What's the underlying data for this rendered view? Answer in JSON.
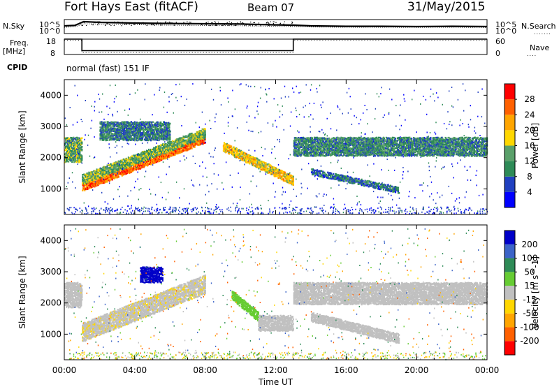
{
  "header": {
    "station": "Fort Hays East (fitACF)",
    "beam": "Beam 07",
    "date": "31/May/2015"
  },
  "strip_labels": {
    "nsky": "N.Sky",
    "nsearch": "N.Search",
    "freq": "Freq.",
    "freq_unit": "[MHz]",
    "nave": "Nave",
    "cpid": "CPID",
    "cpid_value": "normal (fast) 151 IF",
    "noise_ticks_left": [
      "10^5",
      "10^0"
    ],
    "noise_ticks_right": [
      "10^5",
      "10^0"
    ],
    "freq_ticks_left": [
      "18",
      "8"
    ],
    "freq_ticks_right": [
      "60",
      "0"
    ]
  },
  "colors": {
    "power_scale": [
      "#0000ff",
      "#2040c0",
      "#2e8b57",
      "#5aa06a",
      "#ffd700",
      "#ffa500",
      "#ff6000",
      "#ff0000"
    ],
    "velocity_scale": [
      "#0000c8",
      "#3c64c8",
      "#2e8b57",
      "#66cc33",
      "#c0c0c0",
      "#ffd700",
      "#ffa500",
      "#ff6000",
      "#ff0000"
    ],
    "ground_scatter": "#c0c0c0"
  },
  "chart_data": [
    {
      "type": "line",
      "name": "noise",
      "x": [
        0,
        0.6,
        1.1,
        2,
        4,
        6,
        8,
        10,
        12,
        13,
        14,
        16,
        18,
        20,
        22,
        24
      ],
      "series": [
        {
          "name": "N.Sky",
          "values": [
            0.55,
            0.58,
            0.85,
            0.8,
            0.75,
            0.72,
            0.7,
            0.68,
            0.62,
            0.6,
            0.55,
            0.52,
            0.52,
            0.5,
            0.52,
            0.5
          ]
        },
        {
          "name": "N.Search",
          "values": [
            0.45,
            0.48,
            0.7,
            0.68,
            0.63,
            0.6,
            0.58,
            0.56,
            0.52,
            0.5,
            0.47,
            0.45,
            0.45,
            0.44,
            0.45,
            0.43
          ]
        }
      ],
      "ylabel": "N.Sky",
      "yticks": [
        "10^5",
        "10^0"
      ]
    },
    {
      "type": "line",
      "name": "frequency",
      "x": [
        0,
        1.0,
        1.0,
        13.0,
        13.0,
        24
      ],
      "series": [
        {
          "name": "Freq",
          "values": [
            18,
            18,
            10.5,
            10.5,
            18,
            18
          ]
        },
        {
          "name": "Nave",
          "values": [
            55,
            55,
            8,
            8,
            55,
            55
          ]
        }
      ],
      "ylabel": "Freq. [MHz]",
      "ylim_left": [
        8,
        18
      ],
      "ylim_right": [
        0,
        60
      ]
    },
    {
      "type": "heatmap",
      "name": "power",
      "xlabel": "",
      "ylabel": "Slant Range [km]",
      "xlim": [
        0,
        24
      ],
      "ylim": [
        180,
        4500
      ],
      "x_tick_labels": [
        "00:00",
        "04:00",
        "08:00",
        "12:00",
        "16:00",
        "20:00",
        "00:00"
      ],
      "y_tick_labels": [
        "1000",
        "2000",
        "3000",
        "4000"
      ],
      "colorbar_label": "Power [dB]",
      "colorbar_ticks": [
        "4",
        "8",
        "12",
        "16",
        "20",
        "24",
        "28"
      ],
      "clim": [
        0,
        30
      ],
      "regions": [
        {
          "t0": 0,
          "t1": 1,
          "r0": 1900,
          "r1": 2700,
          "level": 12
        },
        {
          "t0": 1,
          "t1": 8,
          "r0_start": 1100,
          "r0_end": 2650,
          "width": 260,
          "level": 24
        },
        {
          "t0": 1,
          "t1": 8,
          "r0_start": 1350,
          "r0_end": 2850,
          "width": 320,
          "level": 13
        },
        {
          "t0": 2,
          "t1": 6,
          "r0": 2600,
          "r1": 3200,
          "level": 9
        },
        {
          "t0": 9,
          "t1": 13,
          "r0_start": 2400,
          "r0_end": 1300,
          "width": 300,
          "level": 18
        },
        {
          "t0": 13,
          "t1": 24,
          "r0": 2100,
          "r1": 2700,
          "level": 10
        },
        {
          "t0": 14,
          "t1": 19,
          "r0_start": 1600,
          "r0_end": 1000,
          "width": 200,
          "level": 8
        }
      ]
    },
    {
      "type": "heatmap",
      "name": "velocity",
      "xlabel": "Time UT",
      "ylabel": "Slant Range [km]",
      "xlim": [
        0,
        24
      ],
      "ylim": [
        180,
        4500
      ],
      "x_tick_labels": [
        "00:00",
        "04:00",
        "08:00",
        "12:00",
        "16:00",
        "20:00",
        "00:00"
      ],
      "y_tick_labels": [
        "1000",
        "2000",
        "3000",
        "4000"
      ],
      "colorbar_label": "Velocity [m s^-1]",
      "colorbar_ticks": [
        "200",
        "100",
        "50",
        "15",
        "-15",
        "-50",
        "-100",
        "-200"
      ],
      "clim": [
        -250,
        250
      ],
      "regions": [
        {
          "t0": 0,
          "t1": 1,
          "r0": 1900,
          "r1": 2700,
          "v": 0
        },
        {
          "t0": 1,
          "t1": 8,
          "r0_start": 1100,
          "r0_end": 2650,
          "width": 600,
          "v": -5
        },
        {
          "t0": 4.3,
          "t1": 5.6,
          "r0": 2700,
          "r1": 3200,
          "v": 220
        },
        {
          "t0": 9.5,
          "t1": 11,
          "r0_start": 2300,
          "r0_end": 1600,
          "width": 300,
          "v": 35
        },
        {
          "t0": 11,
          "t1": 13,
          "r0": 1150,
          "r1": 1650,
          "v": 0
        },
        {
          "t0": 13,
          "t1": 24,
          "r0": 2000,
          "r1": 2700,
          "v": 0
        },
        {
          "t0": 14,
          "t1": 19,
          "r0_start": 1600,
          "r0_end": 900,
          "width": 300,
          "v": 0
        }
      ]
    }
  ]
}
